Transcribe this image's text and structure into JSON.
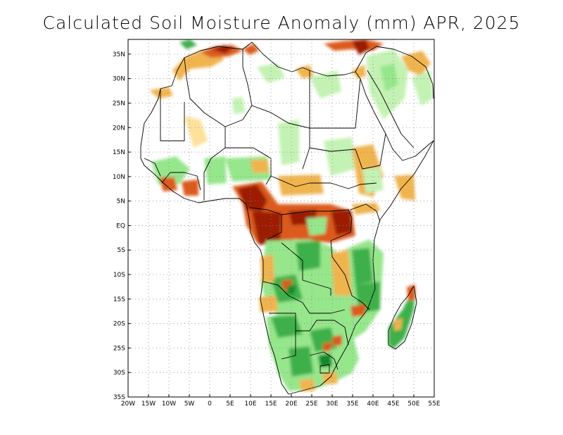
{
  "title": "Calculated Soil Moisture Anomaly (mm) APR, 2025",
  "map": {
    "lon_range": [
      -20,
      55
    ],
    "lat_range": [
      -35,
      38
    ],
    "x_ticks": [
      {
        "value": -20,
        "label": "20W"
      },
      {
        "value": -15,
        "label": "15W"
      },
      {
        "value": -10,
        "label": "10W"
      },
      {
        "value": -5,
        "label": "5W"
      },
      {
        "value": 0,
        "label": "0"
      },
      {
        "value": 5,
        "label": "5E"
      },
      {
        "value": 10,
        "label": "10E"
      },
      {
        "value": 15,
        "label": "15E"
      },
      {
        "value": 20,
        "label": "20E"
      },
      {
        "value": 25,
        "label": "25E"
      },
      {
        "value": 30,
        "label": "30E"
      },
      {
        "value": 35,
        "label": "35E"
      },
      {
        "value": 40,
        "label": "40E"
      },
      {
        "value": 45,
        "label": "45E"
      },
      {
        "value": 50,
        "label": "50E"
      },
      {
        "value": 55,
        "label": "55E"
      }
    ],
    "y_ticks": [
      {
        "value": 35,
        "label": "35N"
      },
      {
        "value": 30,
        "label": "30N"
      },
      {
        "value": 25,
        "label": "25N"
      },
      {
        "value": 20,
        "label": "20N"
      },
      {
        "value": 15,
        "label": "15N"
      },
      {
        "value": 10,
        "label": "10N"
      },
      {
        "value": 5,
        "label": "5N"
      },
      {
        "value": 0,
        "label": "EQ"
      },
      {
        "value": -5,
        "label": "5S"
      },
      {
        "value": -10,
        "label": "10S"
      },
      {
        "value": -15,
        "label": "15S"
      },
      {
        "value": -20,
        "label": "20S"
      },
      {
        "value": -25,
        "label": "25S"
      },
      {
        "value": -30,
        "label": "30S"
      },
      {
        "value": -35,
        "label": "35S"
      }
    ],
    "grid": true,
    "colors": {
      "very_dry": "#9b1c00",
      "dry": "#dc5a1e",
      "slightly_dry": "#f0b450",
      "marginal_dry": "#fde09a",
      "marginal_wet": "#c4f2b4",
      "slightly_wet": "#96e68c",
      "wet": "#3cb04a",
      "very_wet": "#0a8a2a"
    }
  }
}
